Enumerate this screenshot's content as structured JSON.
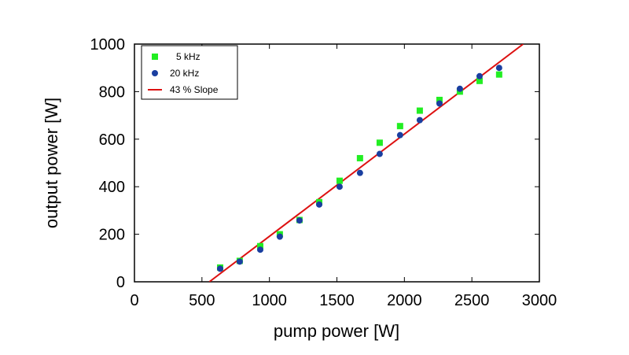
{
  "chart_data": {
    "type": "scatter",
    "title": "",
    "xlabel": "pump power [W]",
    "ylabel": "output power [W]",
    "xlim": [
      0,
      3000
    ],
    "ylim": [
      0,
      1000
    ],
    "xticks": [
      0,
      500,
      1000,
      1500,
      2000,
      2500,
      3000
    ],
    "yticks": [
      0,
      200,
      400,
      600,
      800,
      1000
    ],
    "grid": false,
    "legend_position": "top-left",
    "series": [
      {
        "name": "5 kHz",
        "marker": "square",
        "color": "#22ee22",
        "x": [
          635,
          780,
          932,
          1077,
          1223,
          1369,
          1520,
          1671,
          1817,
          1968,
          2114,
          2260,
          2411,
          2557,
          2702
        ],
        "y": [
          60,
          88,
          150,
          200,
          260,
          335,
          425,
          520,
          585,
          655,
          720,
          765,
          800,
          845,
          872
        ]
      },
      {
        "name": "20 kHz",
        "marker": "circle",
        "color": "#1a3fa0",
        "x": [
          635,
          780,
          932,
          1077,
          1223,
          1369,
          1520,
          1671,
          1817,
          1968,
          2114,
          2260,
          2411,
          2557,
          2702
        ],
        "y": [
          55,
          85,
          135,
          190,
          258,
          325,
          400,
          458,
          538,
          617,
          680,
          750,
          812,
          865,
          900
        ]
      },
      {
        "name": "43 % Slope",
        "marker": "line",
        "color": "#dd1111",
        "x": [
          555,
          2880
        ],
        "y": [
          0,
          1000
        ]
      }
    ]
  }
}
